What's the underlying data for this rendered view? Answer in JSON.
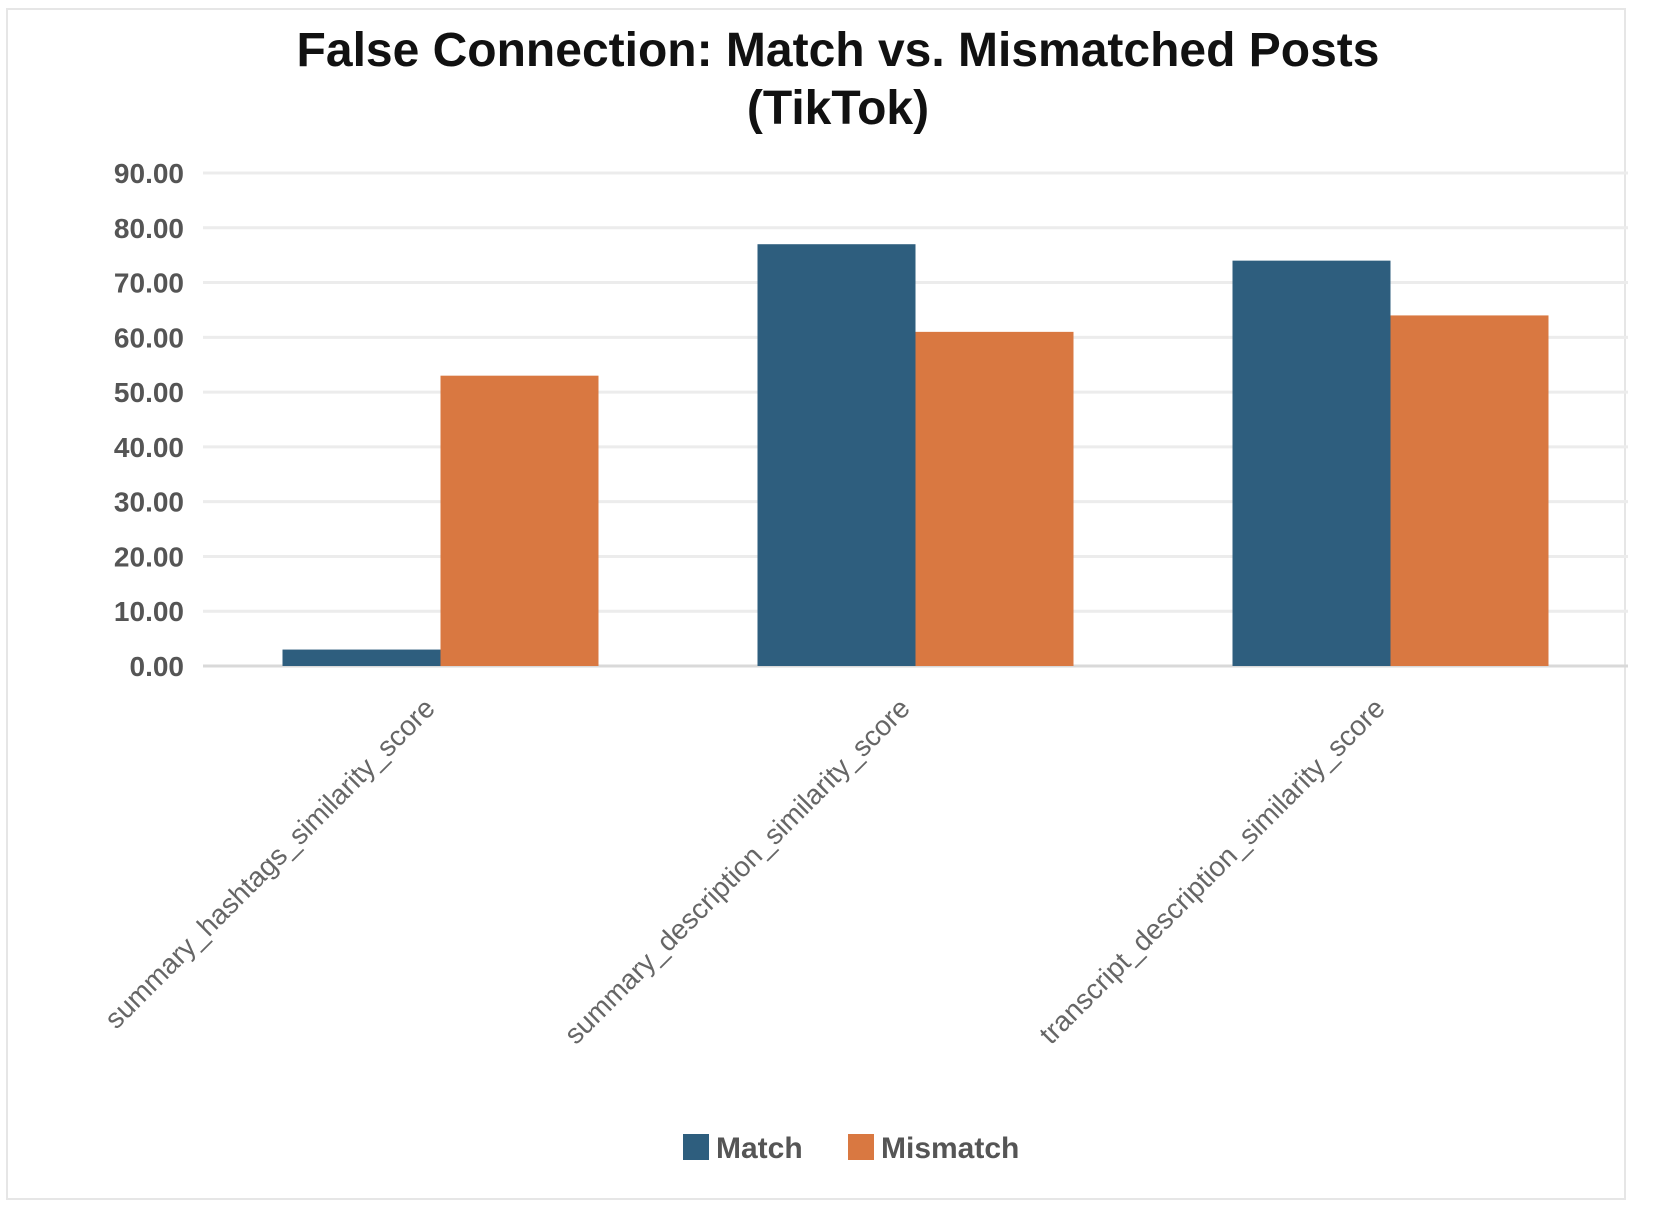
{
  "chart_data": {
    "type": "bar",
    "title": "False Connection: Match vs. Mismatched Posts",
    "subtitle": "(TikTok)",
    "xlabel": "",
    "ylabel": "",
    "categories": [
      "summary_hashtags_similarity_score",
      "summary_description_similarity_score",
      "transcript_description_similarity_score"
    ],
    "series": [
      {
        "name": "Match",
        "color": "#2e5e7e",
        "values": [
          3.0,
          77.0,
          74.0
        ]
      },
      {
        "name": "Mismatch",
        "color": "#d97841",
        "values": [
          53.0,
          61.0,
          64.0
        ]
      }
    ],
    "ylim": [
      0,
      90
    ],
    "yticks": [
      "0.00",
      "10.00",
      "20.00",
      "30.00",
      "40.00",
      "50.00",
      "60.00",
      "70.00",
      "80.00",
      "90.00"
    ],
    "grid": true,
    "legend_position": "bottom"
  }
}
